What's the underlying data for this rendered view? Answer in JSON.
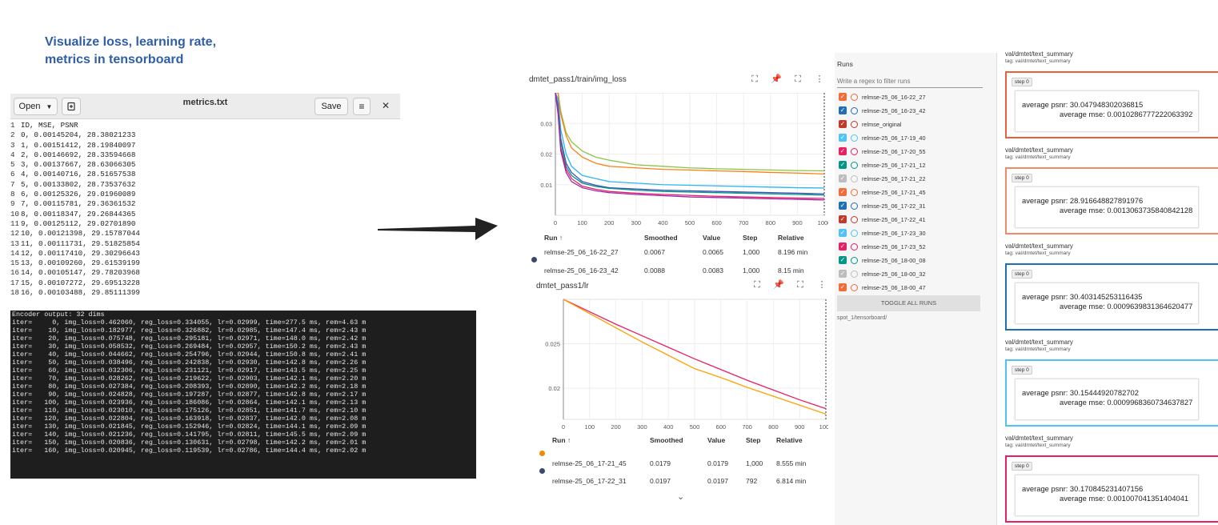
{
  "heading": {
    "line1": "Visualize loss, learning rate,",
    "line2": "metrics in tensorboard"
  },
  "editor": {
    "open_label": "Open",
    "title": "metrics.txt",
    "save_label": "Save",
    "lines": [
      "ID, MSE, PSNR",
      "0, 0.00145204, 28.38021233",
      "1, 0.00151412, 28.19840097",
      "2, 0.00146692, 28.33594668",
      "3, 0.00137667, 28.63066305",
      "4, 0.00140716, 28.51657538",
      "5, 0.00133802, 28.73537632",
      "6, 0.00125326, 29.01960089",
      "7, 0.00115781, 29.36361532",
      "8, 0.00118347, 29.26844365",
      "9, 0.00125112, 29.02701890",
      "10, 0.00121398, 29.15787044",
      "11, 0.00111731, 29.51825854",
      "12, 0.00117410, 29.30296643",
      "13, 0.00109260, 29.61539199",
      "14, 0.00105147, 29.78203968",
      "15, 0.00107272, 29.69513228",
      "16, 0.00103488, 29.85111399"
    ]
  },
  "terminal": {
    "lines": [
      "Encoder output: 32 dims",
      "iter=     0, img_loss=0.462060, reg_loss=0.334055, lr=0.02999, time=277.5 ms, rem=4.63 m",
      "iter=    10, img_loss=0.182977, reg_loss=0.326882, lr=0.02985, time=147.4 ms, rem=2.43 m",
      "iter=    20, img_loss=0.075748, reg_loss=0.295181, lr=0.02971, time=148.0 ms, rem=2.42 m",
      "iter=    30, img_loss=0.058532, reg_loss=0.269484, lr=0.02957, time=150.2 ms, rem=2.43 m",
      "iter=    40, img_loss=0.044662, reg_loss=0.254796, lr=0.02944, time=150.8 ms, rem=2.41 m",
      "iter=    50, img_loss=0.038496, reg_loss=0.242838, lr=0.02930, time=142.8 ms, rem=2.26 m",
      "iter=    60, img_loss=0.032306, reg_loss=0.231121, lr=0.02917, time=143.5 ms, rem=2.25 m",
      "iter=    70, img_loss=0.028262, reg_loss=0.219622, lr=0.02903, time=142.1 ms, rem=2.20 m",
      "iter=    80, img_loss=0.027384, reg_loss=0.208393, lr=0.02890, time=142.2 ms, rem=2.18 m",
      "iter=    90, img_loss=0.024828, reg_loss=0.197287, lr=0.02877, time=142.8 ms, rem=2.17 m",
      "iter=   100, img_loss=0.023936, reg_loss=0.186086, lr=0.02864, time=142.1 ms, rem=2.13 m",
      "iter=   110, img_loss=0.023010, reg_loss=0.175126, lr=0.02851, time=141.7 ms, rem=2.10 m",
      "iter=   120, img_loss=0.022804, reg_loss=0.163918, lr=0.02837, time=142.0 ms, rem=2.08 m",
      "iter=   130, img_loss=0.021845, reg_loss=0.152946, lr=0.02824, time=144.1 ms, rem=2.09 m",
      "iter=   140, img_loss=0.021236, reg_loss=0.141795, lr=0.02811, time=145.5 ms, rem=2.09 m",
      "iter=   150, img_loss=0.020836, reg_loss=0.130631, lr=0.02798, time=142.2 ms, rem=2.01 m",
      "iter=   160, img_loss=0.020945, reg_loss=0.119539, lr=0.02786, time=144.4 ms, rem=2.02 m"
    ]
  },
  "loss_card": {
    "title": "dmtet_pass1/train/img_loss",
    "headers": {
      "run": "Run ↑",
      "smoothed": "Smoothed",
      "value": "Value",
      "step": "Step",
      "relative": "Relative"
    },
    "rows": [
      {
        "run": "relmse-25_06_16-22_27",
        "smoothed": "0.0067",
        "value": "0.0065",
        "step": "1,000",
        "relative": "8.196 min"
      },
      {
        "run": "relmse-25_06_16-23_42",
        "smoothed": "0.0088",
        "value": "0.0083",
        "step": "1,000",
        "relative": "8.15 min"
      }
    ]
  },
  "lr_card": {
    "title": "dmtet_pass1/lr",
    "headers": {
      "run": "Run ↑",
      "smoothed": "Smoothed",
      "value": "Value",
      "step": "Step",
      "relative": "Relative"
    },
    "rows": [
      {
        "run": "relmse-25_06_17-21_45",
        "smoothed": "0.0179",
        "value": "0.0179",
        "step": "1,000",
        "relative": "8.555 min"
      },
      {
        "run": "relmse-25_06_17-22_31",
        "smoothed": "0.0197",
        "value": "0.0197",
        "step": "792",
        "relative": "6.814 min"
      }
    ]
  },
  "chart_data": [
    {
      "type": "line",
      "title": "dmtet_pass1/train/img_loss",
      "x_ticks": [
        "0",
        "100",
        "200",
        "300",
        "400",
        "500",
        "600",
        "700",
        "800",
        "900",
        "1000"
      ],
      "y_ticks": [
        "0.01",
        "0.02",
        "0.03"
      ],
      "xlim": [
        0,
        1000
      ],
      "ylim": [
        0,
        0.04
      ],
      "x": [
        0,
        10,
        20,
        40,
        60,
        100,
        150,
        200,
        300,
        400,
        500,
        600,
        700,
        800,
        900,
        1000
      ],
      "series": [
        {
          "color": "#8bc34a",
          "values": [
            0.04,
            0.04,
            0.034,
            0.027,
            0.024,
            0.021,
            0.019,
            0.018,
            0.0165,
            0.016,
            0.0155,
            0.0152,
            0.015,
            0.0148,
            0.0146,
            0.0145
          ]
        },
        {
          "color": "#ff7f0e",
          "values": [
            0.04,
            0.04,
            0.033,
            0.026,
            0.022,
            0.019,
            0.017,
            0.016,
            0.0155,
            0.015,
            0.0148,
            0.0145,
            0.0143,
            0.014,
            0.0138,
            0.0135
          ]
        },
        {
          "color": "#29b6f6",
          "values": [
            0.04,
            0.038,
            0.028,
            0.02,
            0.016,
            0.013,
            0.012,
            0.011,
            0.0105,
            0.01,
            0.0098,
            0.0096,
            0.0094,
            0.0092,
            0.009,
            0.0089
          ]
        },
        {
          "color": "#3f51b5",
          "values": [
            0.04,
            0.036,
            0.025,
            0.017,
            0.014,
            0.011,
            0.0098,
            0.009,
            0.0086,
            0.0082,
            0.008,
            0.0078,
            0.0076,
            0.0074,
            0.0072,
            0.007
          ]
        },
        {
          "color": "#009688",
          "values": [
            0.04,
            0.035,
            0.024,
            0.016,
            0.013,
            0.0105,
            0.0094,
            0.0088,
            0.0082,
            0.0078,
            0.0076,
            0.0074,
            0.0072,
            0.007,
            0.0068,
            0.0066
          ]
        },
        {
          "color": "#e91e63",
          "values": [
            0.04,
            0.034,
            0.022,
            0.015,
            0.012,
            0.0095,
            0.0085,
            0.0078,
            0.0072,
            0.0068,
            0.0065,
            0.0062,
            0.006,
            0.0058,
            0.0056,
            0.0055
          ]
        },
        {
          "color": "#9c27b0",
          "values": [
            0.04,
            0.033,
            0.021,
            0.014,
            0.011,
            0.009,
            0.008,
            0.0074,
            0.0068,
            0.0064,
            0.006,
            0.0058,
            0.0056,
            0.0054,
            0.0052,
            0.005
          ]
        }
      ]
    },
    {
      "type": "line",
      "title": "dmtet_pass1/lr",
      "x_ticks": [
        "0",
        "100",
        "200",
        "300",
        "400",
        "500",
        "600",
        "700",
        "800",
        "900",
        "1000"
      ],
      "y_ticks": [
        "0.02",
        "0.025"
      ],
      "xlim": [
        0,
        1000
      ],
      "ylim": [
        0.0165,
        0.03
      ],
      "x": [
        0,
        100,
        200,
        300,
        400,
        500,
        600,
        700,
        800,
        900,
        1000
      ],
      "series": [
        {
          "color": "#e91e63",
          "values": [
            0.03,
            0.0286,
            0.0272,
            0.0259,
            0.0246,
            0.0233,
            0.0221,
            0.0209,
            0.0198,
            0.0187,
            0.0177
          ]
        },
        {
          "color": "#ffa000",
          "values": [
            0.03,
            0.0284,
            0.0268,
            0.0252,
            0.0237,
            0.0222,
            0.0212,
            0.0201,
            0.0191,
            0.0181,
            0.0171
          ]
        }
      ]
    }
  ],
  "runs": {
    "title": "Runs",
    "filter_placeholder": "Write a regex to filter runs",
    "items": [
      {
        "label": "relmse-25_06_16-22_27",
        "color": "#f26b38",
        "checked": true
      },
      {
        "label": "relmse-25_06_16-23_42",
        "color": "#1f6fb4",
        "checked": true
      },
      {
        "label": "relmse_original",
        "color": "#c0392b",
        "checked": true
      },
      {
        "label": "relmse-25_06_17-19_40",
        "color": "#4fc3f7",
        "checked": true
      },
      {
        "label": "relmse-25_06_17-20_55",
        "color": "#e91e63",
        "checked": true
      },
      {
        "label": "relmse-25_06_17-21_12",
        "color": "#009688",
        "checked": true
      },
      {
        "label": "relmse-25_06_17-21_22",
        "color": "#bdbdbd",
        "checked": true
      },
      {
        "label": "relmse-25_06_17-21_45",
        "color": "#f26b38",
        "checked": true
      },
      {
        "label": "relmse-25_06_17-22_31",
        "color": "#1f6fb4",
        "checked": true
      },
      {
        "label": "relmse-25_06_17-22_41",
        "color": "#c0392b",
        "checked": true
      },
      {
        "label": "relmse-25_06_17-23_30",
        "color": "#4fc3f7",
        "checked": true
      },
      {
        "label": "relmse-25_06_17-23_52",
        "color": "#e91e63",
        "checked": true
      },
      {
        "label": "relmse-25_06_18-00_08",
        "color": "#009688",
        "checked": true
      },
      {
        "label": "relmse-25_06_18-00_32",
        "color": "#bdbdbd",
        "checked": true
      },
      {
        "label": "relmse-25_06_18-00_47",
        "color": "#f26b38",
        "checked": true
      }
    ],
    "toggle_label": "TOGGLE ALL RUNS",
    "path": "spot_1/tensorboard/"
  },
  "summaries": [
    {
      "name": "val/dmtet/text_summary",
      "tag": "tag: val/dmtet/text_summary",
      "step": "step 0",
      "psnr": "average psnr: 30.047948302036815",
      "mse": "average mse: 0.0010286777222063392",
      "color": "#e8613a"
    },
    {
      "name": "val/dmtet/text_summary",
      "tag": "tag: val/dmtet/text_summary",
      "step": "step 0",
      "psnr": "average psnr: 28.916648827891976",
      "mse": "average mse: 0.0013063735840842128",
      "color": "#f08b66"
    },
    {
      "name": "val/dmtet/text_summary",
      "tag": "tag: val/dmtet/text_summary",
      "step": "step 0",
      "psnr": "average psnr: 30.403145253116435",
      "mse": "average mse: 0.0009639831364620477",
      "color": "#1f6fb4"
    },
    {
      "name": "val/dmtet/text_summary",
      "tag": "tag: val/dmtet/text_summary",
      "step": "step 0",
      "psnr": "average psnr: 30.15444920782702",
      "mse": "average mse: 0.0009968360734637827",
      "color": "#4fc3f7"
    },
    {
      "name": "val/dmtet/text_summary",
      "tag": "tag: val/dmtet/text_summary",
      "step": "step 0",
      "psnr": "average psnr: 30.170845231407156",
      "mse": "average mse: 0.001007041351404041",
      "color": "#e91e63"
    }
  ]
}
